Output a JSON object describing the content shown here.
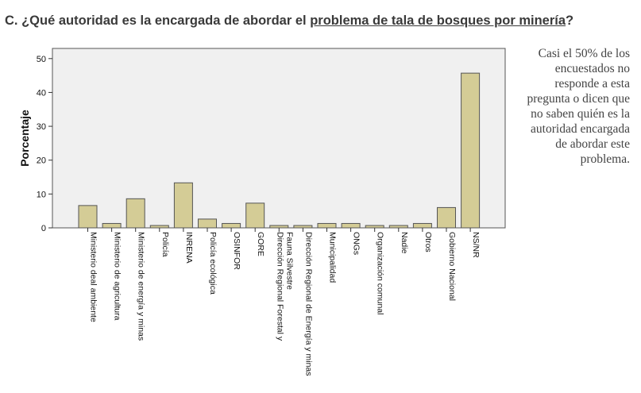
{
  "heading": {
    "prefix": "C.  ¿Qué autoridad es la encargada de abordar el ",
    "underlined": "problema de tala de bosques por minería",
    "suffix": "?"
  },
  "note": "Casi el 50% de los encuestados no responde a esta pregunta o dicen que no saben quién es la autoridad encargada de abordar este problema.",
  "colors": {
    "bar_fill": "#d4cc96",
    "bar_stroke": "#555555",
    "plot_bg": "#f0f0f0"
  },
  "chart_data": {
    "type": "bar",
    "ylabel": "Porcentaje",
    "ylim": [
      0,
      53
    ],
    "yticks": [
      0,
      10,
      20,
      30,
      40,
      50
    ],
    "grid": false,
    "categories": [
      "Ministerio deal ambiente",
      "Ministerio de agricultura",
      "Ministerio de energía y minas",
      "Policía",
      "INRENA",
      "Policía ecológica",
      "OSINFOR",
      "GORE",
      "Dirección Regional Forestal y Fauna Silvestre",
      "Dirección Regional de Energía y minas",
      "Municipalidad",
      "ONGs",
      "Organización comunal",
      "Nadie",
      "Otros",
      "Gobierno Nacional",
      "NS/NR"
    ],
    "values": [
      6.6,
      1.3,
      8.6,
      0.7,
      13.3,
      2.6,
      1.3,
      7.3,
      0.7,
      0.7,
      1.3,
      1.3,
      0.7,
      0.7,
      1.3,
      6.0,
      45.7
    ]
  }
}
